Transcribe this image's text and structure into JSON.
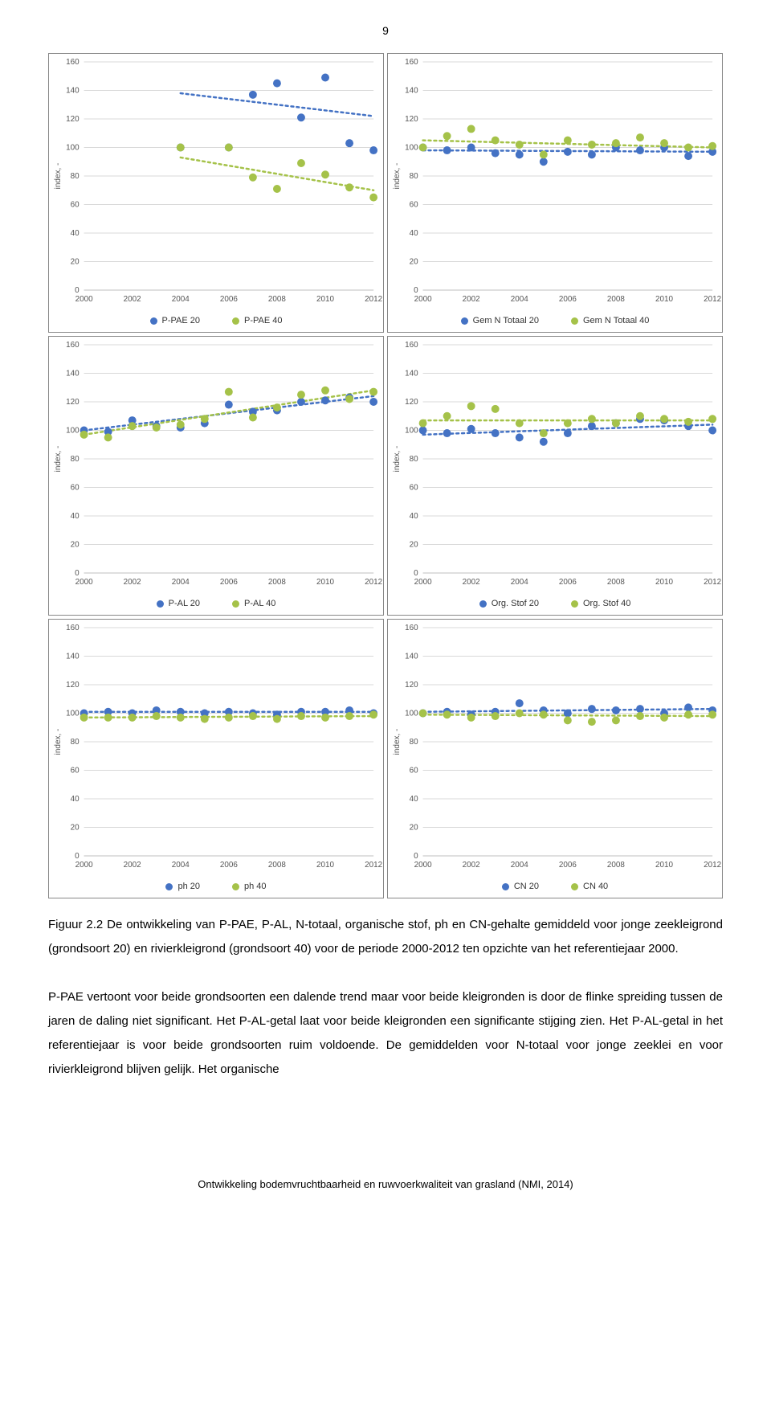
{
  "page_number": "9",
  "global": {
    "xlim": [
      2000,
      2012
    ],
    "ylim": [
      0,
      160
    ],
    "xticks": [
      2000,
      2002,
      2004,
      2006,
      2008,
      2010,
      2012
    ],
    "yticks": [
      0,
      20,
      40,
      60,
      80,
      100,
      120,
      140,
      160
    ],
    "ylabel": "index, -",
    "ylabel_fontsize": 10,
    "tick_fontsize": 10,
    "grid_color": "#d9d9d9",
    "axis_color": "#bfbfbf",
    "background": "#ffffff",
    "marker_radius": 5,
    "trend_dash": "3,4",
    "trend_width": 2.5
  },
  "series_colors": {
    "blue": "#4472c4",
    "green": "#a5c249"
  },
  "charts": [
    {
      "id": "ppae",
      "legend": [
        {
          "label": "P-PAE 20",
          "color": "blue"
        },
        {
          "label": "P-PAE 40",
          "color": "green"
        }
      ],
      "series": [
        {
          "color": "blue",
          "points": [
            [
              2004,
              100
            ],
            [
              2006,
              100
            ],
            [
              2007,
              137
            ],
            [
              2008,
              145
            ],
            [
              2009,
              121
            ],
            [
              2010,
              149
            ],
            [
              2011,
              103
            ],
            [
              2012,
              98
            ]
          ],
          "trend": {
            "x1": 2004,
            "y1": 138,
            "x2": 2012,
            "y2": 122
          }
        },
        {
          "color": "green",
          "points": [
            [
              2004,
              100
            ],
            [
              2006,
              100
            ],
            [
              2007,
              79
            ],
            [
              2008,
              71
            ],
            [
              2009,
              89
            ],
            [
              2010,
              81
            ],
            [
              2011,
              72
            ],
            [
              2012,
              65
            ]
          ],
          "trend": {
            "x1": 2004,
            "y1": 93,
            "x2": 2012,
            "y2": 70
          }
        }
      ]
    },
    {
      "id": "gemntotaal",
      "legend": [
        {
          "label": "Gem N Totaal 20",
          "color": "blue"
        },
        {
          "label": "Gem N Totaal 40",
          "color": "green"
        }
      ],
      "series": [
        {
          "color": "blue",
          "points": [
            [
              2000,
              100
            ],
            [
              2001,
              98
            ],
            [
              2002,
              100
            ],
            [
              2003,
              96
            ],
            [
              2004,
              95
            ],
            [
              2005,
              90
            ],
            [
              2006,
              97
            ],
            [
              2007,
              95
            ],
            [
              2008,
              100
            ],
            [
              2009,
              98
            ],
            [
              2010,
              100
            ],
            [
              2011,
              94
            ],
            [
              2012,
              97
            ]
          ],
          "trend": {
            "x1": 2000,
            "y1": 98,
            "x2": 2012,
            "y2": 97
          }
        },
        {
          "color": "green",
          "points": [
            [
              2000,
              100
            ],
            [
              2001,
              108
            ],
            [
              2002,
              113
            ],
            [
              2003,
              105
            ],
            [
              2004,
              102
            ],
            [
              2005,
              95
            ],
            [
              2006,
              105
            ],
            [
              2007,
              102
            ],
            [
              2008,
              103
            ],
            [
              2009,
              107
            ],
            [
              2010,
              103
            ],
            [
              2011,
              100
            ],
            [
              2012,
              101
            ]
          ],
          "trend": {
            "x1": 2000,
            "y1": 105,
            "x2": 2012,
            "y2": 100
          }
        }
      ]
    },
    {
      "id": "pal",
      "legend": [
        {
          "label": "P-AL 20",
          "color": "blue"
        },
        {
          "label": "P-AL 40",
          "color": "green"
        }
      ],
      "series": [
        {
          "color": "blue",
          "points": [
            [
              2000,
              100
            ],
            [
              2001,
              99
            ],
            [
              2002,
              107
            ],
            [
              2003,
              103
            ],
            [
              2004,
              102
            ],
            [
              2005,
              105
            ],
            [
              2006,
              118
            ],
            [
              2007,
              113
            ],
            [
              2008,
              114
            ],
            [
              2009,
              120
            ],
            [
              2010,
              121
            ],
            [
              2011,
              123
            ],
            [
              2012,
              120
            ]
          ],
          "trend": {
            "x1": 2000,
            "y1": 100,
            "x2": 2012,
            "y2": 124
          }
        },
        {
          "color": "green",
          "points": [
            [
              2000,
              97
            ],
            [
              2001,
              95
            ],
            [
              2002,
              103
            ],
            [
              2003,
              102
            ],
            [
              2004,
              104
            ],
            [
              2005,
              108
            ],
            [
              2006,
              127
            ],
            [
              2007,
              109
            ],
            [
              2008,
              116
            ],
            [
              2009,
              125
            ],
            [
              2010,
              128
            ],
            [
              2011,
              122
            ],
            [
              2012,
              127
            ]
          ],
          "trend": {
            "x1": 2000,
            "y1": 97,
            "x2": 2012,
            "y2": 128
          }
        }
      ]
    },
    {
      "id": "orgstof",
      "legend": [
        {
          "label": "Org. Stof 20",
          "color": "blue"
        },
        {
          "label": "Org. Stof 40",
          "color": "green"
        }
      ],
      "series": [
        {
          "color": "blue",
          "points": [
            [
              2000,
              100
            ],
            [
              2001,
              98
            ],
            [
              2002,
              101
            ],
            [
              2003,
              98
            ],
            [
              2004,
              95
            ],
            [
              2005,
              92
            ],
            [
              2006,
              98
            ],
            [
              2007,
              103
            ],
            [
              2008,
              105
            ],
            [
              2009,
              108
            ],
            [
              2010,
              107
            ],
            [
              2011,
              103
            ],
            [
              2012,
              100
            ]
          ],
          "trend": {
            "x1": 2000,
            "y1": 97,
            "x2": 2012,
            "y2": 104
          }
        },
        {
          "color": "green",
          "points": [
            [
              2000,
              105
            ],
            [
              2001,
              110
            ],
            [
              2002,
              117
            ],
            [
              2003,
              115
            ],
            [
              2004,
              105
            ],
            [
              2005,
              98
            ],
            [
              2006,
              105
            ],
            [
              2007,
              108
            ],
            [
              2008,
              105
            ],
            [
              2009,
              110
            ],
            [
              2010,
              108
            ],
            [
              2011,
              106
            ],
            [
              2012,
              108
            ]
          ],
          "trend": {
            "x1": 2000,
            "y1": 107,
            "x2": 2012,
            "y2": 107
          }
        }
      ]
    },
    {
      "id": "ph",
      "legend": [
        {
          "label": "ph 20",
          "color": "blue"
        },
        {
          "label": "ph 40",
          "color": "green"
        }
      ],
      "series": [
        {
          "color": "blue",
          "points": [
            [
              2000,
              100
            ],
            [
              2001,
              101
            ],
            [
              2002,
              100
            ],
            [
              2003,
              102
            ],
            [
              2004,
              101
            ],
            [
              2005,
              100
            ],
            [
              2006,
              101
            ],
            [
              2007,
              100
            ],
            [
              2008,
              99
            ],
            [
              2009,
              101
            ],
            [
              2010,
              101
            ],
            [
              2011,
              102
            ],
            [
              2012,
              100
            ]
          ],
          "trend": {
            "x1": 2000,
            "y1": 101,
            "x2": 2012,
            "y2": 101
          }
        },
        {
          "color": "green",
          "points": [
            [
              2000,
              97
            ],
            [
              2001,
              97
            ],
            [
              2002,
              97
            ],
            [
              2003,
              98
            ],
            [
              2004,
              97
            ],
            [
              2005,
              96
            ],
            [
              2006,
              97
            ],
            [
              2007,
              98
            ],
            [
              2008,
              96
            ],
            [
              2009,
              98
            ],
            [
              2010,
              97
            ],
            [
              2011,
              98
            ],
            [
              2012,
              99
            ]
          ],
          "trend": {
            "x1": 2000,
            "y1": 97,
            "x2": 2012,
            "y2": 98
          }
        }
      ]
    },
    {
      "id": "cn",
      "legend": [
        {
          "label": "CN 20",
          "color": "blue"
        },
        {
          "label": "CN 40",
          "color": "green"
        }
      ],
      "series": [
        {
          "color": "blue",
          "points": [
            [
              2000,
              100
            ],
            [
              2001,
              101
            ],
            [
              2002,
              99
            ],
            [
              2003,
              101
            ],
            [
              2004,
              107
            ],
            [
              2005,
              102
            ],
            [
              2006,
              100
            ],
            [
              2007,
              103
            ],
            [
              2008,
              102
            ],
            [
              2009,
              103
            ],
            [
              2010,
              100
            ],
            [
              2011,
              104
            ],
            [
              2012,
              102
            ]
          ],
          "trend": {
            "x1": 2000,
            "y1": 101,
            "x2": 2012,
            "y2": 103
          }
        },
        {
          "color": "green",
          "points": [
            [
              2000,
              100
            ],
            [
              2001,
              99
            ],
            [
              2002,
              97
            ],
            [
              2003,
              98
            ],
            [
              2004,
              100
            ],
            [
              2005,
              99
            ],
            [
              2006,
              95
            ],
            [
              2007,
              94
            ],
            [
              2008,
              95
            ],
            [
              2009,
              98
            ],
            [
              2010,
              97
            ],
            [
              2011,
              99
            ],
            [
              2012,
              99
            ]
          ],
          "trend": {
            "x1": 2000,
            "y1": 99,
            "x2": 2012,
            "y2": 98
          }
        }
      ]
    }
  ],
  "caption": "Figuur 2.2 De ontwikkeling van P-PAE, P-AL, N-totaal, organische stof, ph en CN-gehalte gemiddeld voor jonge zeekleigrond (grondsoort 20) en rivierkleigrond (grondsoort 40) voor de periode 2000-2012 ten opzichte van het referentiejaar 2000.",
  "paragraph": "P-PAE vertoont voor beide grondsoorten een dalende trend maar voor beide kleigronden is door de flinke spreiding tussen de jaren de daling niet significant. Het P-AL-getal laat voor beide kleigronden een significante stijging zien. Het P-AL-getal in het referentiejaar is voor beide grondsoorten ruim voldoende. De gemiddelden voor N-totaal voor jonge zeeklei en voor rivierkleigrond blijven gelijk. Het organische",
  "footer": "Ontwikkeling bodemvruchtbaarheid en ruwvoerkwaliteit van grasland (NMI, 2014)"
}
